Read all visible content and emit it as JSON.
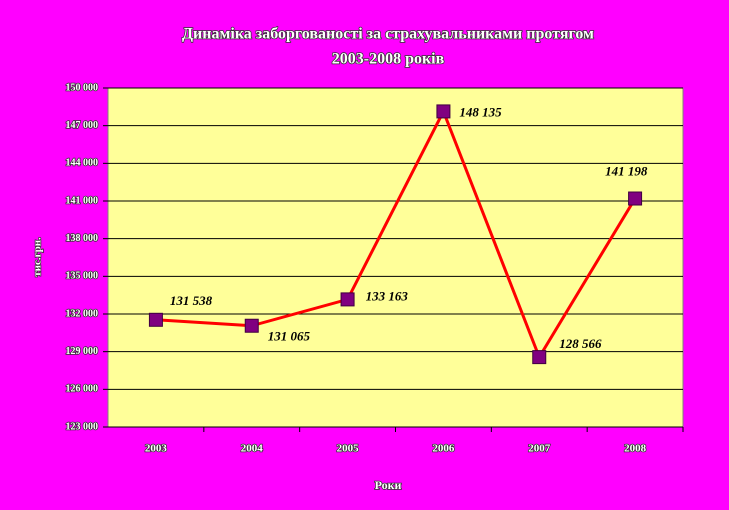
{
  "chart_data": {
    "type": "line",
    "title": [
      "Динаміка заборгованості за страхувальниками протягом",
      "2003-2008 років"
    ],
    "x_label": "Роки",
    "y_label": "тис.грн.",
    "categories": [
      "2003",
      "2004",
      "2005",
      "2006",
      "2007",
      "2008"
    ],
    "series": [
      {
        "color": "#ff0000",
        "marker_color": "#800080",
        "values": [
          131538,
          131065,
          133163,
          148135,
          128566,
          141198
        ],
        "value_labels": [
          "131 538",
          "131 065",
          "133 163",
          "148 135",
          "128 566",
          "141 198"
        ]
      }
    ],
    "ylim": [
      123000,
      150000
    ],
    "yticks": [
      {
        "value": 123000,
        "label": "123 000"
      },
      {
        "value": 126000,
        "label": "126 000"
      },
      {
        "value": 129000,
        "label": "129 000"
      },
      {
        "value": 132000,
        "label": "132 000"
      },
      {
        "value": 135000,
        "label": "135 000"
      },
      {
        "value": 138000,
        "label": "138 000"
      },
      {
        "value": 141000,
        "label": "141 000"
      },
      {
        "value": 144000,
        "label": "144 000"
      },
      {
        "value": 147000,
        "label": "147 000"
      },
      {
        "value": 150000,
        "label": "150 000"
      }
    ],
    "grid": true,
    "background": "#ff00ff",
    "plot_background": "#ffff99"
  }
}
